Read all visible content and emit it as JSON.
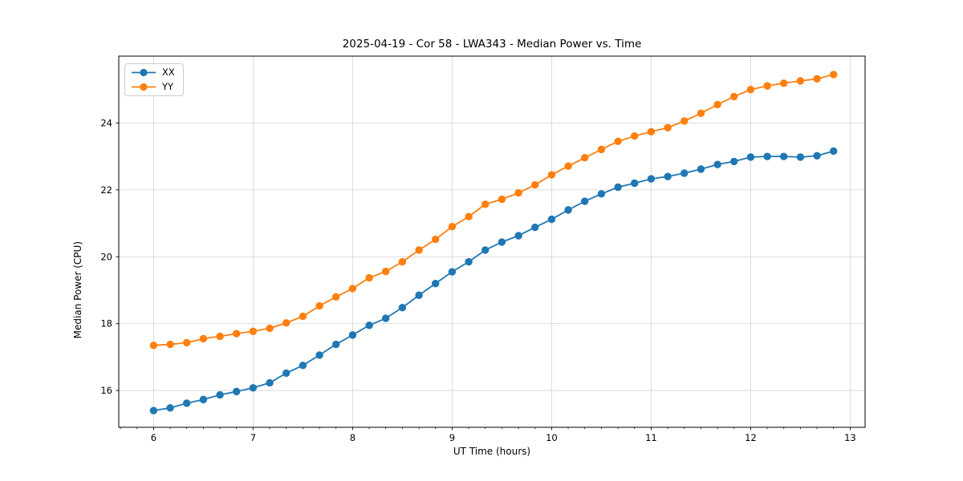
{
  "chart_data": {
    "type": "line",
    "title": "2025-04-19 - Cor 58 - LWA343 - Median Power vs. Time",
    "xlabel": "UT Time (hours)",
    "ylabel": "Median Power (CPU)",
    "xlim": [
      5.65,
      13.15
    ],
    "ylim": [
      14.9,
      26.0
    ],
    "xticks": [
      6,
      7,
      8,
      9,
      10,
      11,
      12,
      13
    ],
    "yticks": [
      16,
      18,
      20,
      22,
      24
    ],
    "x_minor_ticks_per_hour": 6,
    "grid": true,
    "grid_color": "#d9d9d9",
    "background_color": "#ffffff",
    "spine_color": "#000000",
    "legend_position": "upper left",
    "x": [
      6.0,
      6.167,
      6.333,
      6.5,
      6.667,
      6.833,
      7.0,
      7.167,
      7.333,
      7.5,
      7.667,
      7.833,
      8.0,
      8.167,
      8.333,
      8.5,
      8.667,
      8.833,
      9.0,
      9.167,
      9.333,
      9.5,
      9.667,
      9.833,
      10.0,
      10.167,
      10.333,
      10.5,
      10.667,
      10.833,
      11.0,
      11.167,
      11.333,
      11.5,
      11.667,
      11.833,
      12.0,
      12.167,
      12.333,
      12.5,
      12.667,
      12.833
    ],
    "series": [
      {
        "name": "XX",
        "color": "#1f77b4",
        "values": [
          15.4,
          15.48,
          15.62,
          15.73,
          15.87,
          15.97,
          16.08,
          16.23,
          16.52,
          16.75,
          17.06,
          17.38,
          17.66,
          17.95,
          18.16,
          18.48,
          18.85,
          19.2,
          19.55,
          19.85,
          20.2,
          20.44,
          20.63,
          20.88,
          21.12,
          21.4,
          21.66,
          21.88,
          22.08,
          22.2,
          22.33,
          22.4,
          22.5,
          22.62,
          22.76,
          22.85,
          22.98,
          23.0,
          23.0,
          22.98,
          23.02,
          23.16
        ]
      },
      {
        "name": "YY",
        "color": "#ff7f0e",
        "values": [
          17.35,
          17.38,
          17.43,
          17.55,
          17.62,
          17.7,
          17.77,
          17.86,
          18.02,
          18.22,
          18.53,
          18.8,
          19.05,
          19.37,
          19.56,
          19.85,
          20.2,
          20.52,
          20.9,
          21.2,
          21.57,
          21.72,
          21.91,
          22.15,
          22.45,
          22.71,
          22.96,
          23.21,
          23.45,
          23.61,
          23.74,
          23.86,
          24.06,
          24.29,
          24.55,
          24.79,
          25.0,
          25.11,
          25.19,
          25.26,
          25.32,
          25.45
        ]
      }
    ]
  }
}
